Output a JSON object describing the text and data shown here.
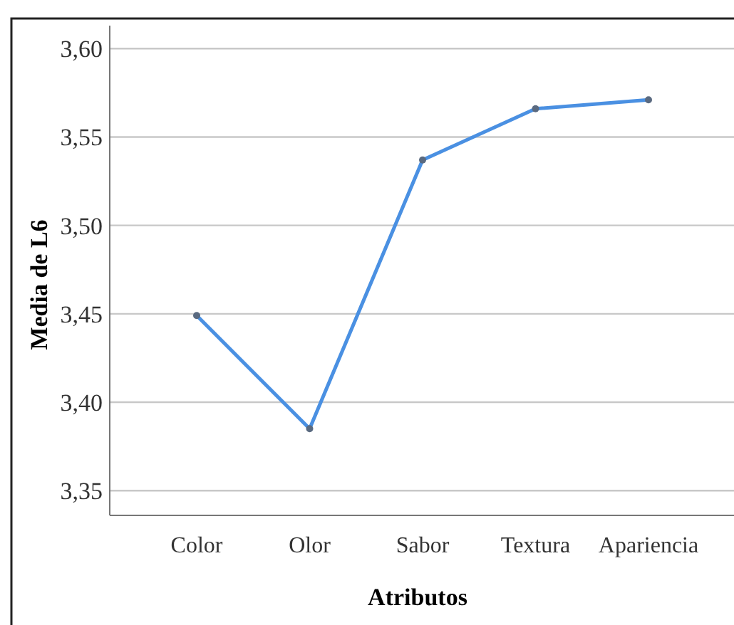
{
  "chart_data": {
    "type": "line",
    "xlabel": "Atributos",
    "ylabel": "Media de L6",
    "categories": [
      "Color",
      "Olor",
      "Sabor",
      "Textura",
      "Apariencia"
    ],
    "series": [
      {
        "color": "#4a90e2",
        "values": [
          3.449,
          3.385,
          3.537,
          3.566,
          3.571
        ]
      }
    ],
    "ylim": [
      3.336,
      3.613
    ],
    "yticks": [
      {
        "value": 3.35,
        "label": "3,35"
      },
      {
        "value": 3.4,
        "label": "3,40"
      },
      {
        "value": 3.45,
        "label": "3,45"
      },
      {
        "value": 3.5,
        "label": "3,50"
      },
      {
        "value": 3.55,
        "label": "3,55"
      },
      {
        "value": 3.6,
        "label": "3,60"
      }
    ],
    "grid": "y",
    "marker": "circle"
  }
}
